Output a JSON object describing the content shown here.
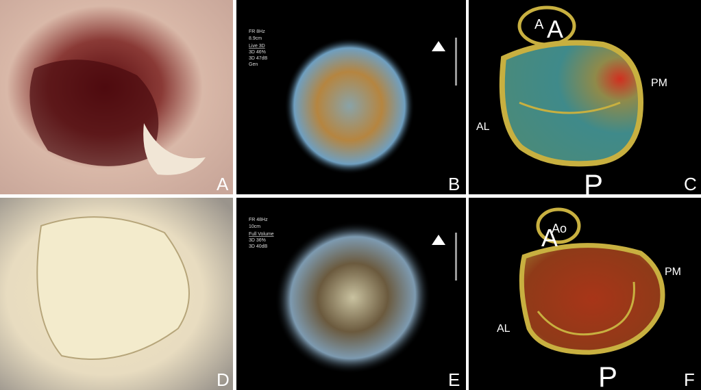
{
  "panels": [
    {
      "letter": "A"
    },
    {
      "letter": "B",
      "overlay": [
        "FR 8Hz",
        "8.9cm",
        "Live 3D",
        "3D 46%",
        "3D 47dB",
        "Gen"
      ]
    },
    {
      "letter": "C",
      "labels": {
        "aorta_small": "A",
        "aorta_large": "A",
        "posteromedial": "PM",
        "anterolateral": "AL",
        "posterior": "P"
      }
    },
    {
      "letter": "D"
    },
    {
      "letter": "E",
      "overlay": [
        "FR 48Hz",
        "10cm",
        "Full Volume",
        "3D 36%",
        "3D 40dB"
      ]
    },
    {
      "letter": "F",
      "labels": {
        "anterior": "A",
        "aorta": "Ao",
        "posteromedial": "PM",
        "anterolateral": "AL",
        "posterior": "P"
      }
    }
  ]
}
